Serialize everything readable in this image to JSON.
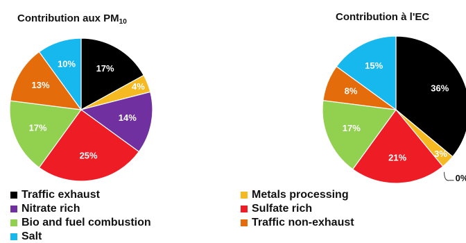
{
  "colors": {
    "traffic_exhaust": "#000000",
    "metals_processing": "#f5b921",
    "nitrate_rich": "#7030a0",
    "sulfate_rich": "#ee1c25",
    "bio_fuel_combustion": "#92d050",
    "traffic_non_exhaust": "#e46c0a",
    "salt": "#16b8ee"
  },
  "chart_data": [
    {
      "type": "pie",
      "title_main": "Contribution aux PM",
      "title_sub": "10",
      "slices": [
        {
          "key": "traffic_exhaust",
          "value": 17,
          "label": "17%"
        },
        {
          "key": "metals_processing",
          "value": 4,
          "label": "4%"
        },
        {
          "key": "nitrate_rich",
          "value": 14,
          "label": "14%"
        },
        {
          "key": "sulfate_rich",
          "value": 25,
          "label": "25%"
        },
        {
          "key": "bio_fuel_combustion",
          "value": 17,
          "label": "17%"
        },
        {
          "key": "traffic_non_exhaust",
          "value": 13,
          "label": "13%"
        },
        {
          "key": "salt",
          "value": 10,
          "label": "10%"
        }
      ]
    },
    {
      "type": "pie",
      "title_main": "Contribution à l'EC",
      "title_sub": "",
      "slices": [
        {
          "key": "traffic_exhaust",
          "value": 36,
          "label": "36%"
        },
        {
          "key": "metals_processing",
          "value": 3,
          "label": "3%"
        },
        {
          "key": "nitrate_rich",
          "value": 0,
          "label": "0%"
        },
        {
          "key": "sulfate_rich",
          "value": 21,
          "label": "21%"
        },
        {
          "key": "bio_fuel_combustion",
          "value": 17,
          "label": "17%"
        },
        {
          "key": "traffic_non_exhaust",
          "value": 8,
          "label": "8%"
        },
        {
          "key": "salt",
          "value": 15,
          "label": "15%"
        }
      ]
    }
  ],
  "legend": [
    {
      "key": "traffic_exhaust",
      "label": "Traffic exhaust"
    },
    {
      "key": "metals_processing",
      "label": "Metals processing"
    },
    {
      "key": "nitrate_rich",
      "label": "Nitrate rich"
    },
    {
      "key": "sulfate_rich",
      "label": "Sulfate rich"
    },
    {
      "key": "bio_fuel_combustion",
      "label": "Bio and fuel combustion"
    },
    {
      "key": "traffic_non_exhaust",
      "label": "Traffic non-exhaust"
    },
    {
      "key": "salt",
      "label": "Salt"
    }
  ]
}
